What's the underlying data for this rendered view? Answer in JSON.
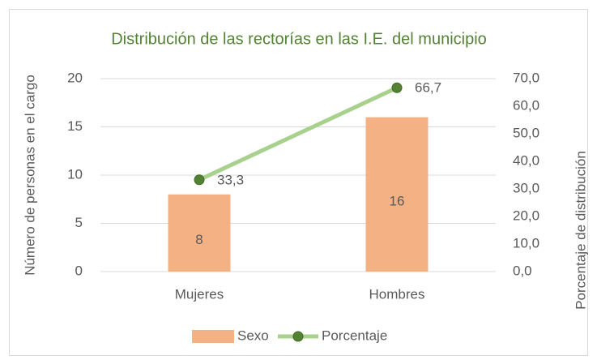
{
  "chart_data": {
    "type": "bar",
    "title": "Distribución de las rectorías en las I.E. del municipio",
    "y_label": "Número de personas en el cargo",
    "y2_label": "Porcentaje de distribución",
    "categories": [
      "Mujeres",
      "Hombres"
    ],
    "series": [
      {
        "name": "Sexo",
        "type": "bar",
        "color": "#f4b183",
        "values": [
          8,
          16
        ],
        "value_labels": [
          "8",
          "16"
        ]
      },
      {
        "name": "Porcentaje",
        "type": "line",
        "axis": "y2",
        "color": "#a9d18e",
        "marker_color": "#548235",
        "values": [
          33.3,
          66.7
        ],
        "value_labels": [
          "33,3",
          "66,7"
        ]
      }
    ],
    "ylim": [
      0,
      20
    ],
    "yticks": [
      0,
      5,
      10,
      15,
      20
    ],
    "y2lim": [
      0,
      70
    ],
    "y2ticks": [
      {
        "value": 0,
        "label": "0,0"
      },
      {
        "value": 10,
        "label": "10,0"
      },
      {
        "value": 20,
        "label": "20,0"
      },
      {
        "value": 30,
        "label": "30,0"
      },
      {
        "value": 40,
        "label": "40,0"
      },
      {
        "value": 50,
        "label": "50,0"
      },
      {
        "value": 60,
        "label": "60,0"
      },
      {
        "value": 70,
        "label": "70,0"
      }
    ],
    "grid": true,
    "legend": "bottom"
  }
}
